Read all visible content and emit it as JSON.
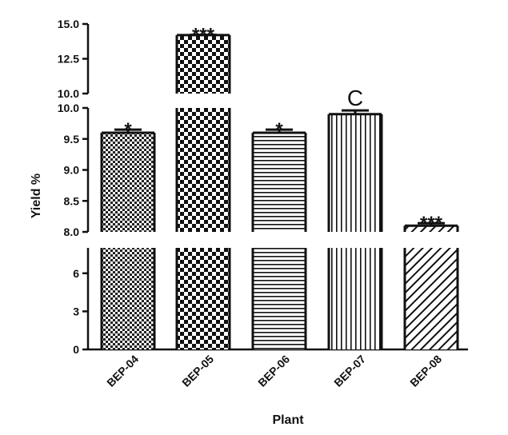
{
  "chart_data": {
    "type": "bar",
    "title": "",
    "xlabel": "Plant",
    "ylabel": "Yield %",
    "categories": [
      "BEP-04",
      "BEP-05",
      "BEP-06",
      "BEP-07",
      "BEP-08"
    ],
    "values": [
      9.6,
      14.2,
      9.6,
      9.9,
      8.1
    ],
    "errors": [
      0.05,
      0.02,
      0.05,
      0.06,
      0.04
    ],
    "significance": [
      "*",
      "***",
      "*",
      "C",
      "***"
    ],
    "patterns": [
      "fine-checker",
      "coarse-checker",
      "horizontal-lines",
      "vertical-lines",
      "diagonal-lines"
    ],
    "broken_axis": true,
    "segments": [
      {
        "ylim": [
          0,
          8
        ],
        "ticks": [
          "0",
          "3",
          "6"
        ],
        "tick_values": [
          0,
          3,
          6
        ]
      },
      {
        "ylim": [
          8,
          10
        ],
        "ticks": [
          "8.0",
          "8.5",
          "9.0",
          "9.5",
          "10.0"
        ],
        "tick_values": [
          8,
          8.5,
          9,
          9.5,
          10
        ]
      },
      {
        "ylim": [
          10,
          15
        ],
        "ticks": [
          "10.0",
          "12.5",
          "15.0"
        ],
        "tick_values": [
          10,
          12.5,
          15
        ]
      }
    ],
    "grid": false,
    "legend": "none",
    "bar_color": "#000000",
    "background": "#ffffff"
  }
}
